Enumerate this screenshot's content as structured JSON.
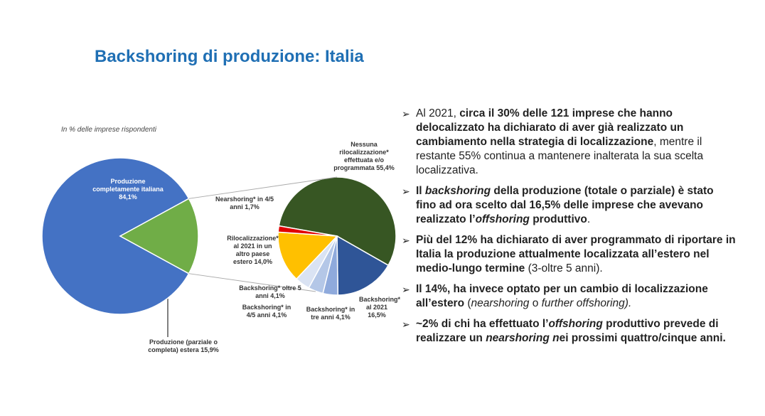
{
  "title": "Backshoring di produzione: Italia",
  "chart_data": [
    {
      "type": "pie",
      "subtitle": "In % delle imprese rispondenti",
      "categories": [
        "Produzione completamente italiana",
        "Produzione (parziale o completa) estera"
      ],
      "values": [
        84.1,
        15.9
      ],
      "value_labels": [
        "84,1%",
        "15,9%"
      ],
      "colors": [
        "#4472c4",
        "#70ad47"
      ]
    },
    {
      "type": "pie",
      "categories": [
        "Nessuna rilocalizzazione* effettuata e/o programmata",
        "Backshoring* al 2021",
        "Backshoring* in tre anni",
        "Backshoring* in 4/5 anni",
        "Backshoring* oltre 5 anni",
        "Rilocalizzazione* al 2021 in un altro paese estero",
        "Nearshoring* in 4/5 anni"
      ],
      "values": [
        55.4,
        16.5,
        4.1,
        4.1,
        4.1,
        14.0,
        1.7
      ],
      "value_labels": [
        "55,4%",
        "16,5%",
        "4,1%",
        "4,1%",
        "4,1%",
        "14,0%",
        "1,7%"
      ],
      "colors": [
        "#375623",
        "#2f5597",
        "#8faadc",
        "#b4c7e7",
        "#dae3f3",
        "#ffc000",
        "#e00000"
      ]
    }
  ],
  "bullets": [
    [
      {
        "text": "Al 2021, ",
        "style": "normal"
      },
      {
        "text": "circa il 30% delle 121 imprese che hanno delocalizzato ha dichiarato di aver già realizzato un cambiamento nella strategia di localizzazione",
        "style": "b"
      },
      {
        "text": ", mentre il restante 55% continua a mantenere inalterata la sua scelta localizzativa.",
        "style": "normal"
      }
    ],
    [
      {
        "text": "Il ",
        "style": "b"
      },
      {
        "text": "backshoring",
        "style": "bi"
      },
      {
        "text": " della produzione (totale o parziale) è stato fino ad ora scelto dal 16,5% delle imprese che avevano realizzato l’",
        "style": "b"
      },
      {
        "text": "offshoring",
        "style": "bi"
      },
      {
        "text": " produttivo",
        "style": "b"
      },
      {
        "text": ".",
        "style": "normal"
      }
    ],
    [
      {
        "text": "Più del 12% ha dichiarato di aver programmato di riportare in Italia la produzione attualmente localizzata all’estero nel medio-lungo termine",
        "style": "b"
      },
      {
        "text": " (3-oltre 5 anni).",
        "style": "normal"
      }
    ],
    [
      {
        "text": "Il 14%, ha invece optato per un cambio di localizzazione all’estero",
        "style": "b"
      },
      {
        "text": " (",
        "style": "normal"
      },
      {
        "text": "nearshoring",
        "style": "i"
      },
      {
        "text": " o ",
        "style": "normal"
      },
      {
        "text": "further offshoring).",
        "style": "i"
      }
    ],
    [
      {
        "text": "~2% di chi ha effettuato l’",
        "style": "b"
      },
      {
        "text": "offshoring",
        "style": "bi"
      },
      {
        "text": " produttivo prevede di realizzare un ",
        "style": "b"
      },
      {
        "text": "nearshoring n",
        "style": "bi"
      },
      {
        "text": "ei prossimi quattro/cinque anni.",
        "style": "b"
      }
    ]
  ]
}
